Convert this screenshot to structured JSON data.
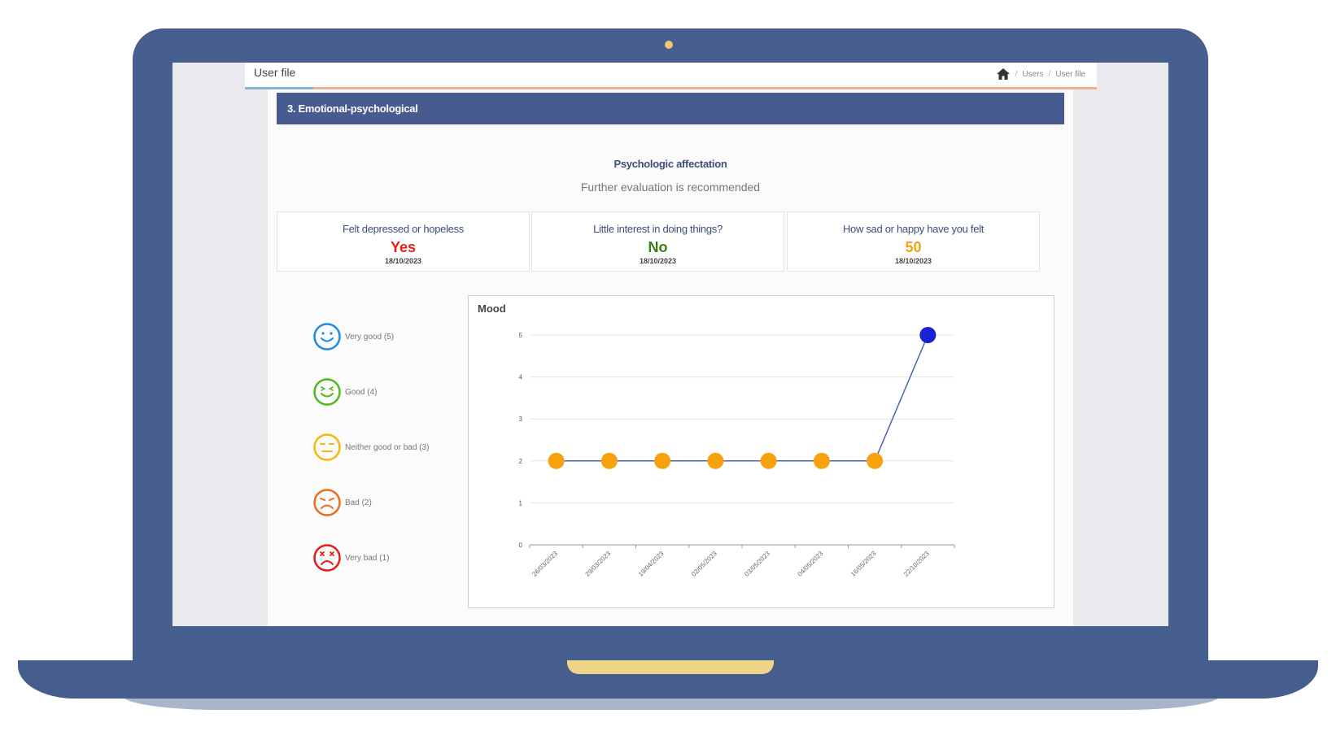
{
  "header": {
    "title": "User file",
    "breadcrumb": [
      "Users",
      "User file"
    ]
  },
  "section": {
    "title": "3. Emotional-psychological"
  },
  "affectation": {
    "title": "Psychologic affectation",
    "subtitle": "Further evaluation is recommended"
  },
  "cards": [
    {
      "question": "Felt depressed or hopeless",
      "answer": "Yes",
      "date": "18/10/2023",
      "color": "#e8201c"
    },
    {
      "question": "Little interest in doing things?",
      "answer": "No",
      "date": "18/10/2023",
      "color": "#3e7d14"
    },
    {
      "question": "How sad or happy have you felt",
      "answer": "50",
      "date": "18/10/2023",
      "color": "#f5a20c"
    }
  ],
  "legend": [
    {
      "label": "Very good (5)",
      "icon": "very-good-face-icon",
      "color": "#1f8be3"
    },
    {
      "label": "Good (4)",
      "icon": "good-face-icon",
      "color": "#4cbb1a"
    },
    {
      "label": "Neither good or bad (3)",
      "icon": "neutral-face-icon",
      "color": "#f5b70c"
    },
    {
      "label": "Bad (2)",
      "icon": "bad-face-icon",
      "color": "#ef6a1c"
    },
    {
      "label": "Very bad (1)",
      "icon": "very-bad-face-icon",
      "color": "#e21c1c"
    }
  ],
  "chart_data": {
    "type": "line",
    "title": "Mood",
    "categories": [
      "26/03/2023",
      "29/03/2023",
      "19/04/2023",
      "02/05/2023",
      "03/05/2023",
      "04/05/2023",
      "16/05/2023",
      "22/10/2023"
    ],
    "values": [
      2,
      2,
      2,
      2,
      2,
      2,
      2,
      5
    ],
    "yticks": [
      0,
      1,
      2,
      3,
      4,
      5
    ],
    "ylim": [
      0,
      5
    ],
    "grid": true,
    "point_colors": [
      "#f5a20c",
      "#f5a20c",
      "#f5a20c",
      "#f5a20c",
      "#f5a20c",
      "#f5a20c",
      "#f5a20c",
      "#1a22d8"
    ],
    "line_color": "#4a63b0"
  }
}
